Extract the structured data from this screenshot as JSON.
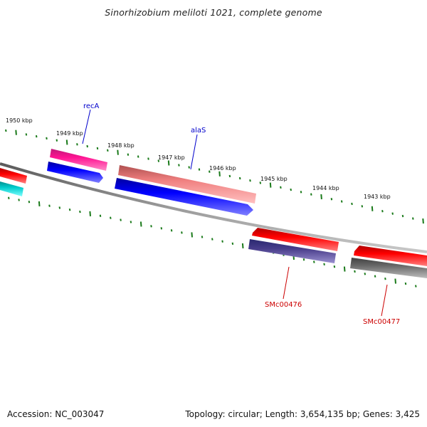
{
  "title": "Sinorhizobium meliloti 1021, complete genome",
  "footer": {
    "accession": "Accession: NC_003047",
    "stats": "Topology: circular; Length: 3,654,135 bp; Genes: 3,425"
  },
  "ruler_labels": [
    "1950 kbp",
    "1949 kbp",
    "1948 kbp",
    "1947 kbp",
    "1946 kbp",
    "1945 kbp",
    "1944 kbp",
    "1943 kbp"
  ],
  "gene_labels": {
    "recA": "recA",
    "alaS": "alaS",
    "smc00476": "SMc00476",
    "smc00477": "SMc00477"
  },
  "colors": {
    "forward_label": "#0000cc",
    "reverse_label": "#cc0000",
    "tick": "#1a7a1a",
    "backbone": "#808080"
  }
}
